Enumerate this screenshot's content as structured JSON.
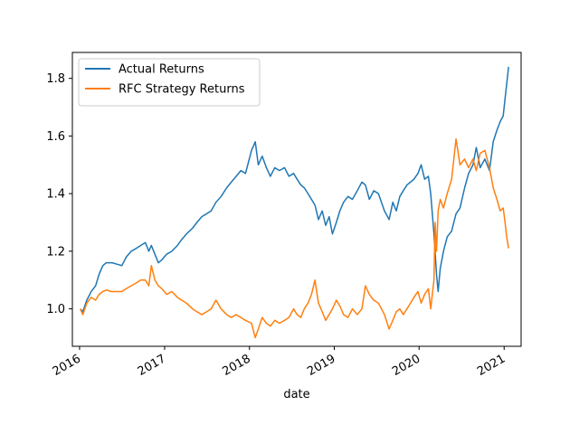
{
  "chart_data": {
    "type": "line",
    "title": "",
    "xlabel": "date",
    "ylabel": "",
    "xlim": [
      "2015-12-01",
      "2021-03-15"
    ],
    "ylim": [
      0.87,
      1.89
    ],
    "x_ticks": [
      "2016",
      "2017",
      "2018",
      "2019",
      "2020",
      "2021"
    ],
    "y_ticks": [
      "1.0",
      "1.2",
      "1.4",
      "1.6",
      "1.8"
    ],
    "grid": false,
    "legend_position": "top-left",
    "colors": {
      "actual": "#1f77b4",
      "rfc": "#ff7f0e"
    },
    "series": [
      {
        "name": "Actual Returns",
        "color": "#1f77b4",
        "points": [
          [
            "2016-01-04",
            1.0
          ],
          [
            "2016-01-15",
            0.99
          ],
          [
            "2016-02-01",
            1.03
          ],
          [
            "2016-02-20",
            1.06
          ],
          [
            "2016-03-10",
            1.08
          ],
          [
            "2016-03-25",
            1.12
          ],
          [
            "2016-04-10",
            1.15
          ],
          [
            "2016-04-25",
            1.16
          ],
          [
            "2016-05-20",
            1.16
          ],
          [
            "2016-06-10",
            1.155
          ],
          [
            "2016-07-01",
            1.15
          ],
          [
            "2016-07-20",
            1.18
          ],
          [
            "2016-08-10",
            1.2
          ],
          [
            "2016-09-01",
            1.21
          ],
          [
            "2016-09-20",
            1.22
          ],
          [
            "2016-10-10",
            1.23
          ],
          [
            "2016-10-25",
            1.2
          ],
          [
            "2016-11-05",
            1.22
          ],
          [
            "2016-11-20",
            1.19
          ],
          [
            "2016-12-05",
            1.16
          ],
          [
            "2016-12-20",
            1.17
          ],
          [
            "2017-01-10",
            1.19
          ],
          [
            "2017-02-01",
            1.2
          ],
          [
            "2017-02-25",
            1.22
          ],
          [
            "2017-03-15",
            1.24
          ],
          [
            "2017-04-05",
            1.26
          ],
          [
            "2017-05-01",
            1.28
          ],
          [
            "2017-05-20",
            1.3
          ],
          [
            "2017-06-10",
            1.32
          ],
          [
            "2017-07-01",
            1.33
          ],
          [
            "2017-07-20",
            1.34
          ],
          [
            "2017-08-10",
            1.37
          ],
          [
            "2017-09-01",
            1.39
          ],
          [
            "2017-09-25",
            1.42
          ],
          [
            "2017-10-15",
            1.44
          ],
          [
            "2017-11-05",
            1.46
          ],
          [
            "2017-11-25",
            1.48
          ],
          [
            "2017-12-15",
            1.47
          ],
          [
            "2018-01-10",
            1.55
          ],
          [
            "2018-01-26",
            1.58
          ],
          [
            "2018-02-08",
            1.5
          ],
          [
            "2018-02-25",
            1.53
          ],
          [
            "2018-03-15",
            1.49
          ],
          [
            "2018-04-01",
            1.46
          ],
          [
            "2018-04-20",
            1.49
          ],
          [
            "2018-05-10",
            1.48
          ],
          [
            "2018-06-01",
            1.49
          ],
          [
            "2018-06-20",
            1.46
          ],
          [
            "2018-07-10",
            1.47
          ],
          [
            "2018-07-25",
            1.45
          ],
          [
            "2018-08-10",
            1.43
          ],
          [
            "2018-08-25",
            1.42
          ],
          [
            "2018-09-10",
            1.4
          ],
          [
            "2018-09-25",
            1.38
          ],
          [
            "2018-10-10",
            1.36
          ],
          [
            "2018-10-25",
            1.31
          ],
          [
            "2018-11-10",
            1.34
          ],
          [
            "2018-11-25",
            1.29
          ],
          [
            "2018-12-10",
            1.32
          ],
          [
            "2018-12-24",
            1.26
          ],
          [
            "2019-01-10",
            1.3
          ],
          [
            "2019-01-25",
            1.34
          ],
          [
            "2019-02-10",
            1.37
          ],
          [
            "2019-03-01",
            1.39
          ],
          [
            "2019-03-20",
            1.38
          ],
          [
            "2019-04-10",
            1.41
          ],
          [
            "2019-04-30",
            1.44
          ],
          [
            "2019-05-15",
            1.43
          ],
          [
            "2019-06-01",
            1.38
          ],
          [
            "2019-06-20",
            1.41
          ],
          [
            "2019-07-10",
            1.4
          ],
          [
            "2019-08-05",
            1.34
          ],
          [
            "2019-08-25",
            1.31
          ],
          [
            "2019-09-10",
            1.37
          ],
          [
            "2019-09-25",
            1.34
          ],
          [
            "2019-10-10",
            1.39
          ],
          [
            "2019-10-25",
            1.41
          ],
          [
            "2019-11-10",
            1.43
          ],
          [
            "2019-11-25",
            1.44
          ],
          [
            "2019-12-10",
            1.45
          ],
          [
            "2019-12-27",
            1.47
          ],
          [
            "2020-01-10",
            1.5
          ],
          [
            "2020-01-25",
            1.45
          ],
          [
            "2020-02-10",
            1.46
          ],
          [
            "2020-02-20",
            1.4
          ],
          [
            "2020-03-05",
            1.26
          ],
          [
            "2020-03-16",
            1.12
          ],
          [
            "2020-03-23",
            1.06
          ],
          [
            "2020-04-01",
            1.14
          ],
          [
            "2020-04-15",
            1.2
          ],
          [
            "2020-05-01",
            1.25
          ],
          [
            "2020-05-20",
            1.27
          ],
          [
            "2020-06-08",
            1.33
          ],
          [
            "2020-06-25",
            1.35
          ],
          [
            "2020-07-15",
            1.42
          ],
          [
            "2020-08-01",
            1.47
          ],
          [
            "2020-08-20",
            1.5
          ],
          [
            "2020-09-03",
            1.56
          ],
          [
            "2020-09-20",
            1.49
          ],
          [
            "2020-10-10",
            1.52
          ],
          [
            "2020-10-30",
            1.48
          ],
          [
            "2020-11-15",
            1.58
          ],
          [
            "2020-12-01",
            1.62
          ],
          [
            "2020-12-15",
            1.65
          ],
          [
            "2020-12-28",
            1.67
          ],
          [
            "2021-01-05",
            1.73
          ],
          [
            "2021-01-12",
            1.78
          ],
          [
            "2021-01-20",
            1.84
          ]
        ]
      },
      {
        "name": "RFC Strategy Returns",
        "color": "#ff7f0e",
        "points": [
          [
            "2016-01-04",
            1.0
          ],
          [
            "2016-01-15",
            0.98
          ],
          [
            "2016-02-01",
            1.02
          ],
          [
            "2016-02-20",
            1.04
          ],
          [
            "2016-03-10",
            1.03
          ],
          [
            "2016-03-25",
            1.05
          ],
          [
            "2016-04-10",
            1.06
          ],
          [
            "2016-04-25",
            1.065
          ],
          [
            "2016-05-20",
            1.06
          ],
          [
            "2016-06-10",
            1.06
          ],
          [
            "2016-07-01",
            1.06
          ],
          [
            "2016-07-20",
            1.07
          ],
          [
            "2016-08-10",
            1.08
          ],
          [
            "2016-09-01",
            1.09
          ],
          [
            "2016-09-20",
            1.1
          ],
          [
            "2016-10-10",
            1.1
          ],
          [
            "2016-10-25",
            1.08
          ],
          [
            "2016-11-05",
            1.15
          ],
          [
            "2016-11-20",
            1.1
          ],
          [
            "2016-12-05",
            1.08
          ],
          [
            "2016-12-20",
            1.07
          ],
          [
            "2017-01-10",
            1.05
          ],
          [
            "2017-02-01",
            1.06
          ],
          [
            "2017-02-25",
            1.04
          ],
          [
            "2017-03-15",
            1.03
          ],
          [
            "2017-04-05",
            1.02
          ],
          [
            "2017-05-01",
            1.0
          ],
          [
            "2017-05-20",
            0.99
          ],
          [
            "2017-06-10",
            0.98
          ],
          [
            "2017-07-01",
            0.99
          ],
          [
            "2017-07-20",
            1.0
          ],
          [
            "2017-08-10",
            1.03
          ],
          [
            "2017-09-01",
            1.0
          ],
          [
            "2017-09-25",
            0.98
          ],
          [
            "2017-10-15",
            0.97
          ],
          [
            "2017-11-05",
            0.98
          ],
          [
            "2017-11-25",
            0.97
          ],
          [
            "2017-12-15",
            0.96
          ],
          [
            "2018-01-10",
            0.95
          ],
          [
            "2018-01-26",
            0.9
          ],
          [
            "2018-02-08",
            0.93
          ],
          [
            "2018-02-25",
            0.97
          ],
          [
            "2018-03-15",
            0.95
          ],
          [
            "2018-04-01",
            0.94
          ],
          [
            "2018-04-20",
            0.96
          ],
          [
            "2018-05-10",
            0.95
          ],
          [
            "2018-06-01",
            0.96
          ],
          [
            "2018-06-20",
            0.97
          ],
          [
            "2018-07-10",
            1.0
          ],
          [
            "2018-07-25",
            0.98
          ],
          [
            "2018-08-10",
            0.97
          ],
          [
            "2018-08-25",
            1.0
          ],
          [
            "2018-09-10",
            1.02
          ],
          [
            "2018-09-25",
            1.05
          ],
          [
            "2018-10-10",
            1.1
          ],
          [
            "2018-10-25",
            1.02
          ],
          [
            "2018-11-10",
            0.99
          ],
          [
            "2018-11-25",
            0.96
          ],
          [
            "2018-12-10",
            0.98
          ],
          [
            "2018-12-24",
            1.0
          ],
          [
            "2019-01-10",
            1.03
          ],
          [
            "2019-01-25",
            1.01
          ],
          [
            "2019-02-10",
            0.98
          ],
          [
            "2019-03-01",
            0.97
          ],
          [
            "2019-03-20",
            1.0
          ],
          [
            "2019-04-10",
            0.98
          ],
          [
            "2019-04-30",
            1.0
          ],
          [
            "2019-05-15",
            1.08
          ],
          [
            "2019-06-01",
            1.05
          ],
          [
            "2019-06-20",
            1.03
          ],
          [
            "2019-07-10",
            1.02
          ],
          [
            "2019-08-05",
            0.98
          ],
          [
            "2019-08-25",
            0.93
          ],
          [
            "2019-09-10",
            0.96
          ],
          [
            "2019-09-25",
            0.99
          ],
          [
            "2019-10-10",
            1.0
          ],
          [
            "2019-10-25",
            0.98
          ],
          [
            "2019-11-10",
            1.0
          ],
          [
            "2019-11-25",
            1.02
          ],
          [
            "2019-12-10",
            1.04
          ],
          [
            "2019-12-27",
            1.06
          ],
          [
            "2020-01-10",
            1.02
          ],
          [
            "2020-01-25",
            1.05
          ],
          [
            "2020-02-10",
            1.07
          ],
          [
            "2020-02-20",
            1.0
          ],
          [
            "2020-03-05",
            1.1
          ],
          [
            "2020-03-10",
            1.3
          ],
          [
            "2020-03-16",
            1.2
          ],
          [
            "2020-03-23",
            1.34
          ],
          [
            "2020-04-01",
            1.38
          ],
          [
            "2020-04-15",
            1.35
          ],
          [
            "2020-05-01",
            1.4
          ],
          [
            "2020-05-20",
            1.45
          ],
          [
            "2020-06-08",
            1.59
          ],
          [
            "2020-06-25",
            1.5
          ],
          [
            "2020-07-15",
            1.52
          ],
          [
            "2020-08-01",
            1.49
          ],
          [
            "2020-08-20",
            1.52
          ],
          [
            "2020-09-03",
            1.48
          ],
          [
            "2020-09-20",
            1.54
          ],
          [
            "2020-10-10",
            1.55
          ],
          [
            "2020-10-30",
            1.49
          ],
          [
            "2020-11-15",
            1.42
          ],
          [
            "2020-12-01",
            1.38
          ],
          [
            "2020-12-15",
            1.34
          ],
          [
            "2020-12-28",
            1.35
          ],
          [
            "2021-01-05",
            1.3
          ],
          [
            "2021-01-12",
            1.25
          ],
          [
            "2021-01-20",
            1.21
          ]
        ]
      }
    ]
  }
}
